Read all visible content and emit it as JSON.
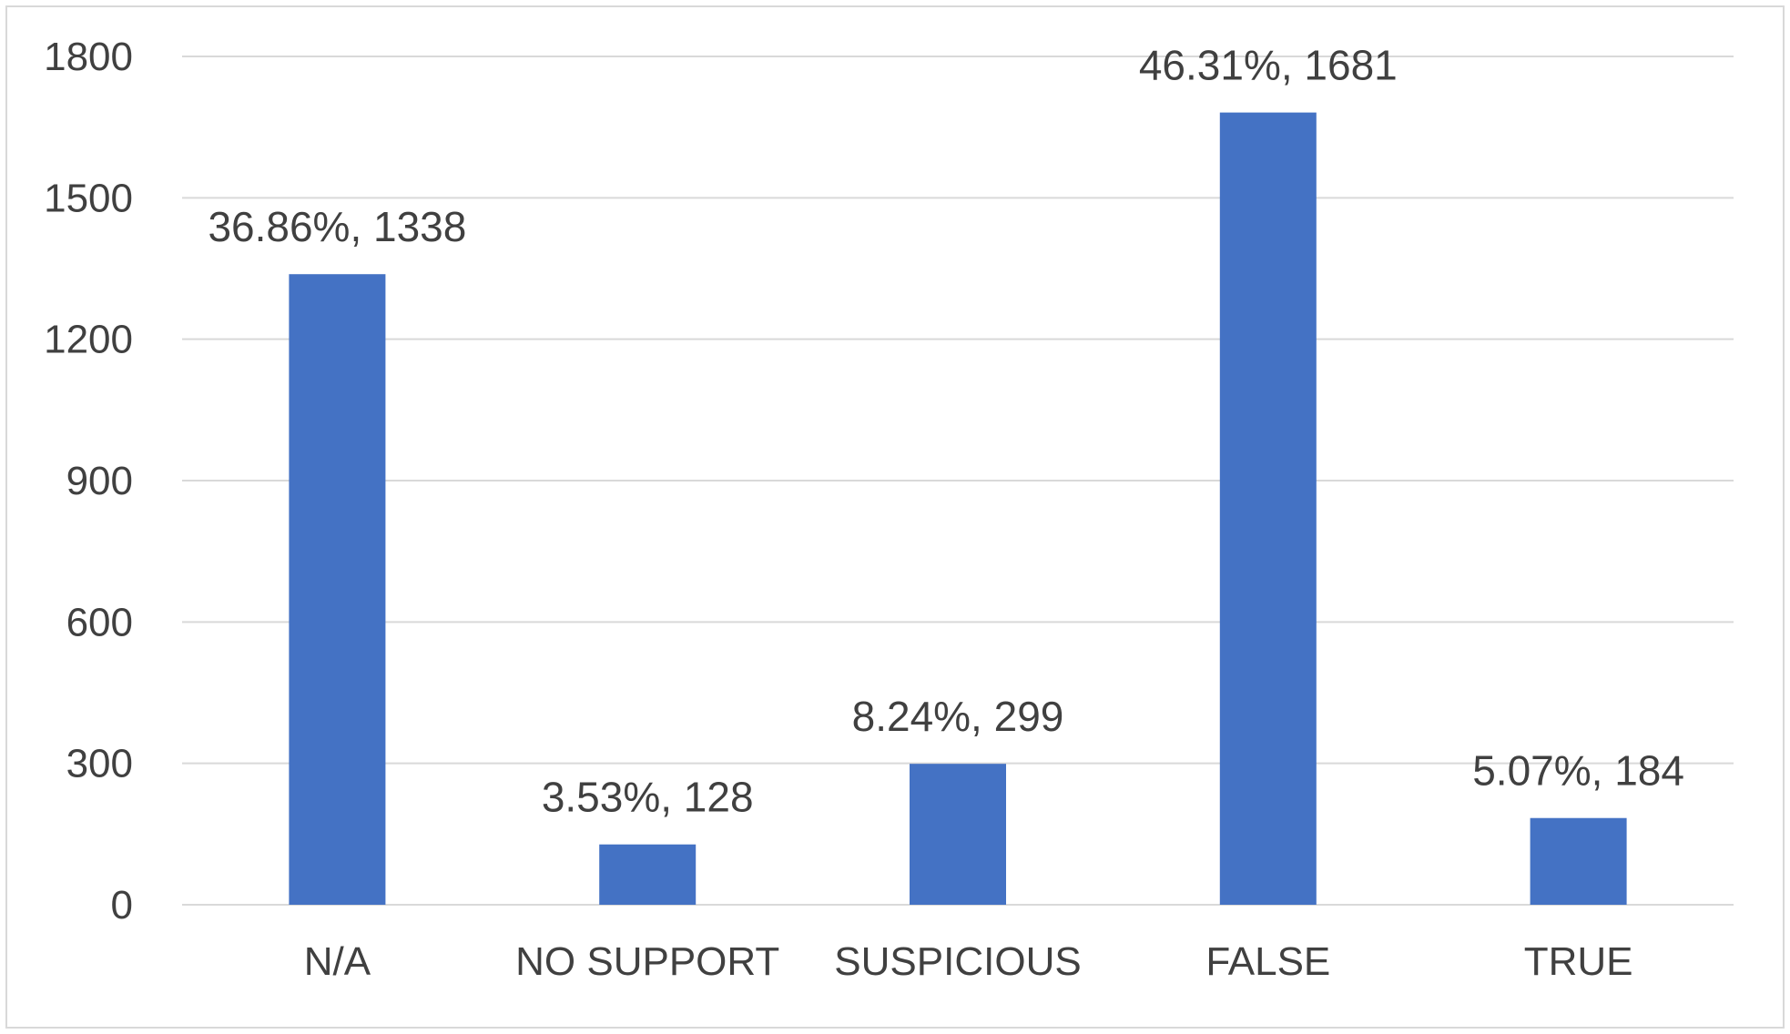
{
  "chart_data": {
    "type": "bar",
    "categories": [
      "N/A",
      "NO SUPPORT",
      "SUSPICIOUS",
      "FALSE",
      "TRUE"
    ],
    "values": [
      1338,
      128,
      299,
      1681,
      184
    ],
    "data_labels": [
      "36.86%, 1338",
      "3.53%, 128",
      "8.24%, 299",
      "46.31%, 1681",
      "5.07%, 184"
    ],
    "y_ticks": [
      0,
      300,
      600,
      900,
      1200,
      1500,
      1800
    ],
    "ylim": [
      0,
      1800
    ],
    "title": "",
    "xlabel": "",
    "ylabel": "",
    "grid": true,
    "legend": "none",
    "bar_color": "#4472C4",
    "grid_color": "#d9d9d9"
  }
}
